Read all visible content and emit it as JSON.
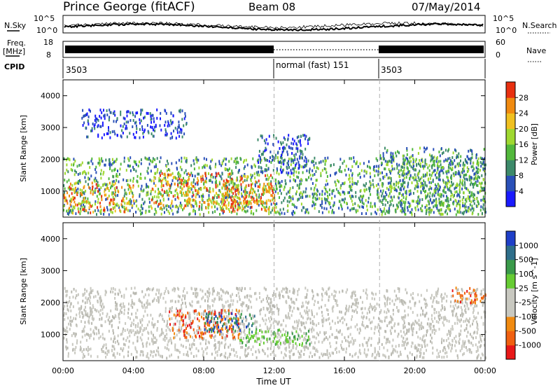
{
  "header": {
    "station": "Prince George (fitACF)",
    "beam": "Beam 08",
    "date": "07/May/2014"
  },
  "aux": {
    "nsky_label": "N.Sky",
    "nsearch_label": "N.Search",
    "noise_ticks": [
      "10^5",
      "10^0"
    ],
    "freq_label_1": "Freq.",
    "freq_label_2": "[MHz]",
    "freq_ticks": [
      "18",
      "8"
    ],
    "nave_label": "Nave",
    "nave_ticks": [
      "60",
      "0"
    ],
    "cpid_label": "CPID",
    "cpid_segments": [
      {
        "start_hour": 0,
        "text": "3503"
      },
      {
        "start_hour": 12,
        "text": "normal (fast) 151"
      },
      {
        "start_hour": 18,
        "text": "3503"
      }
    ]
  },
  "chart_data": [
    {
      "type": "heatmap",
      "panel": "power",
      "ylabel": "Slant Range [km]",
      "xlim": [
        0,
        24
      ],
      "ylim": [
        180,
        4500
      ],
      "yticks": [
        1000,
        2000,
        3000,
        4000
      ],
      "colorbar": {
        "label": "Power [dB]",
        "ticks": [
          "4",
          "8",
          "12",
          "16",
          "20",
          "24",
          "28"
        ],
        "colors": [
          "#1a1aff",
          "#2a50b8",
          "#3d8a6a",
          "#52b83c",
          "#9fd830",
          "#f0c020",
          "#f08a10",
          "#e83010"
        ],
        "range": [
          0,
          32
        ]
      },
      "echo_regions": [
        {
          "t": [
            0,
            24
          ],
          "range": [
            300,
            2100
          ],
          "level": "mid"
        },
        {
          "t": [
            0,
            4
          ],
          "range": [
            350,
            1300
          ],
          "level": "strong"
        },
        {
          "t": [
            5,
            12
          ],
          "range": [
            500,
            1600
          ],
          "level": "strong"
        },
        {
          "t": [
            9,
            12
          ],
          "range": [
            400,
            1200
          ],
          "level": "strong"
        },
        {
          "t": [
            11,
            14
          ],
          "range": [
            1600,
            2800
          ],
          "level": "weak"
        },
        {
          "t": [
            18,
            24
          ],
          "range": [
            300,
            2400
          ],
          "level": "mid"
        },
        {
          "t": [
            1,
            7
          ],
          "range": [
            2700,
            3600
          ],
          "level": "weak"
        }
      ]
    },
    {
      "type": "heatmap",
      "panel": "velocity",
      "ylabel": "Slant Range [km]",
      "xlabel": "Time UT",
      "xlim": [
        0,
        24
      ],
      "ylim": [
        180,
        4500
      ],
      "yticks": [
        1000,
        2000,
        3000,
        4000
      ],
      "xticks": [
        "00:00",
        "04:00",
        "08:00",
        "12:00",
        "16:00",
        "20:00",
        "00:00"
      ],
      "colorbar": {
        "label": "Velocity [m s^-1]",
        "ticks": [
          "1000",
          "500",
          "100",
          "25",
          "-25",
          "-100",
          "-500",
          "-1000"
        ],
        "colors": [
          "#1f3fc8",
          "#2e6e8a",
          "#3a9a4a",
          "#66cc33",
          "#c8c8c0",
          "#c8c8c0",
          "#f08a10",
          "#f06010",
          "#e81818"
        ]
      },
      "echo_regions": [
        {
          "t": [
            0,
            24
          ],
          "range": [
            300,
            2500
          ],
          "level": "ground"
        },
        {
          "t": [
            6,
            10
          ],
          "range": [
            900,
            1800
          ],
          "level": "away"
        },
        {
          "t": [
            8,
            11
          ],
          "range": [
            1100,
            1700
          ],
          "level": "toward"
        },
        {
          "t": [
            10,
            14
          ],
          "range": [
            700,
            1200
          ],
          "level": "toward_fast"
        },
        {
          "t": [
            22,
            24
          ],
          "range": [
            2000,
            2500
          ],
          "level": "away"
        }
      ]
    }
  ],
  "colors": {
    "axis": "#000000",
    "dashed": "#b0b0b0",
    "ground": "#c8c8c0"
  }
}
